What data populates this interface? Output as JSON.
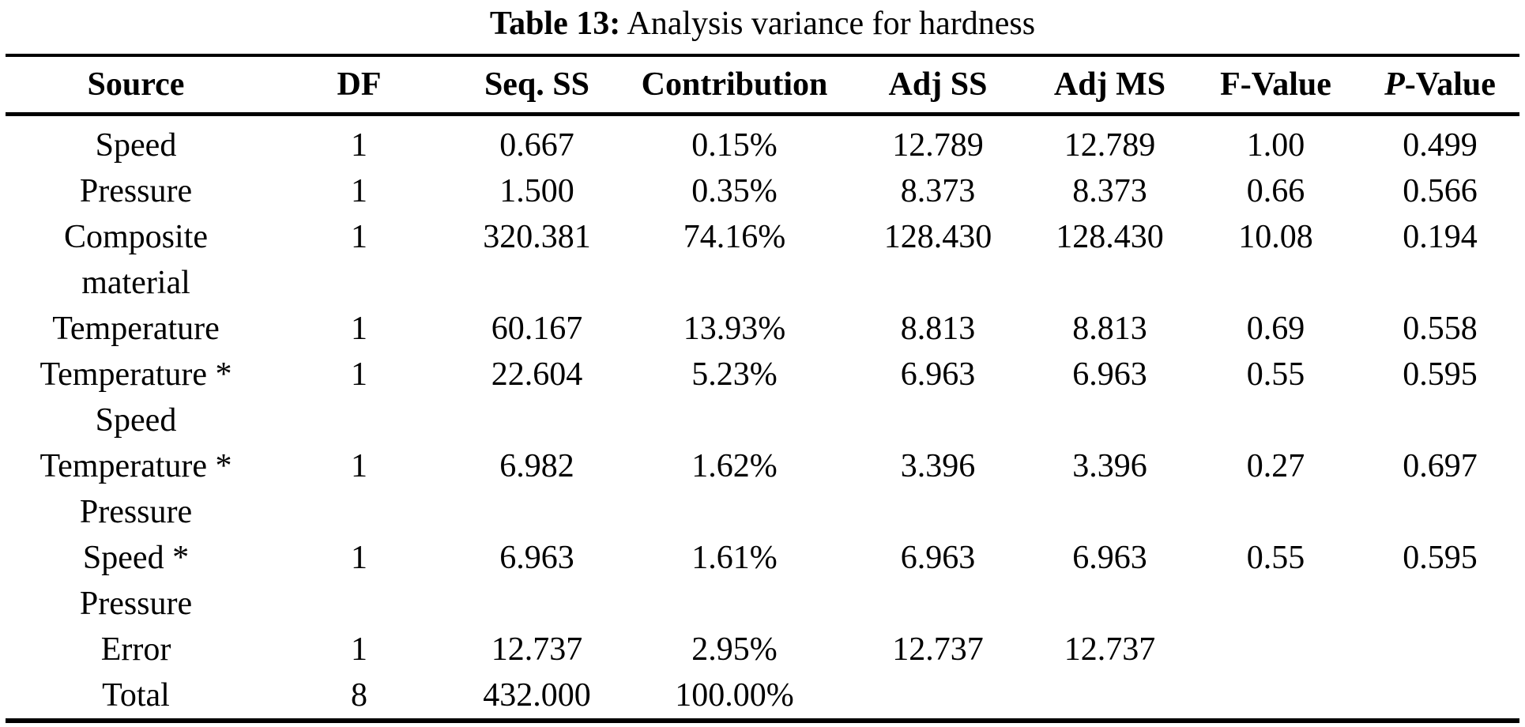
{
  "page": {
    "background_color": "#ffffff",
    "text_color": "#000000",
    "rule_color": "#000000"
  },
  "caption": {
    "label": "Table 13:",
    "text": " Analysis variance for hardness"
  },
  "table": {
    "columns": [
      "Source",
      "DF",
      "Seq. SS",
      "Contribution",
      "Adj SS",
      "Adj MS",
      "F-Value"
    ],
    "p_header": {
      "italic": "P",
      "rest": "-Value"
    },
    "rows": [
      {
        "source": [
          "Speed"
        ],
        "values": [
          "1",
          "0.667",
          "0.15%",
          "12.789",
          "12.789",
          "1.00",
          "0.499"
        ]
      },
      {
        "source": [
          "Pressure"
        ],
        "values": [
          "1",
          "1.500",
          "0.35%",
          "8.373",
          "8.373",
          "0.66",
          "0.566"
        ]
      },
      {
        "source": [
          "Composite",
          "material"
        ],
        "values": [
          "1",
          "320.381",
          "74.16%",
          "128.430",
          "128.430",
          "10.08",
          "0.194"
        ]
      },
      {
        "source": [
          "Temperature"
        ],
        "values": [
          "1",
          "60.167",
          "13.93%",
          "8.813",
          "8.813",
          "0.69",
          "0.558"
        ]
      },
      {
        "source": [
          "Temperature *",
          "Speed"
        ],
        "values": [
          "1",
          "22.604",
          "5.23%",
          "6.963",
          "6.963",
          "0.55",
          "0.595"
        ]
      },
      {
        "source": [
          "Temperature *",
          "Pressure"
        ],
        "values": [
          "1",
          "6.982",
          "1.62%",
          "3.396",
          "3.396",
          "0.27",
          "0.697"
        ]
      },
      {
        "source": [
          "Speed *",
          "Pressure"
        ],
        "values": [
          "1",
          "6.963",
          "1.61%",
          "6.963",
          "6.963",
          "0.55",
          "0.595"
        ]
      },
      {
        "source": [
          "Error"
        ],
        "values": [
          "1",
          "12.737",
          "2.95%",
          "12.737",
          "12.737",
          "",
          ""
        ]
      },
      {
        "source": [
          "Total"
        ],
        "values": [
          "8",
          "432.000",
          "100.00%",
          "",
          "",
          "",
          ""
        ]
      }
    ]
  }
}
